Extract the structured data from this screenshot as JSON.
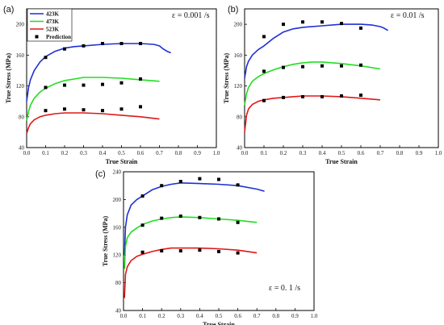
{
  "chart_data": [
    {
      "type": "line",
      "panel_label": "(a)",
      "annotation": "ε = 0.001 /s",
      "xlabel": "True Strain",
      "ylabel": "True Stress (MPa)",
      "xlim": [
        0,
        1.0
      ],
      "ylim": [
        40,
        220
      ],
      "xticks": [
        "0.0",
        "0.1",
        "0.2",
        "0.3",
        "0.4",
        "0.5",
        "0.6",
        "0.7",
        "0.8",
        "0.9",
        "1.0"
      ],
      "yticks": [
        "40",
        "80",
        "120",
        "160",
        "200"
      ],
      "legend": {
        "position": "top-left",
        "entries": [
          {
            "label": "423K",
            "color": "#1f2fd6",
            "kind": "line"
          },
          {
            "label": "473K",
            "color": "#22dd22",
            "kind": "line"
          },
          {
            "label": "523K",
            "color": "#e01818",
            "kind": "line"
          },
          {
            "label": "Prediction",
            "color": "#000000",
            "kind": "square"
          }
        ]
      },
      "series": [
        {
          "name": "423K",
          "color": "#1f2fd6",
          "x": [
            0.0,
            0.01,
            0.02,
            0.04,
            0.07,
            0.1,
            0.15,
            0.2,
            0.25,
            0.3,
            0.4,
            0.5,
            0.6,
            0.67,
            0.7,
            0.72,
            0.74,
            0.76
          ],
          "y": [
            100,
            118,
            128,
            140,
            151,
            158,
            165,
            169,
            171,
            172,
            174,
            175,
            175,
            174,
            172,
            168,
            165,
            163
          ]
        },
        {
          "name": "473K",
          "color": "#22dd22",
          "x": [
            0.0,
            0.01,
            0.02,
            0.04,
            0.07,
            0.1,
            0.15,
            0.2,
            0.25,
            0.3,
            0.35,
            0.4,
            0.5,
            0.6,
            0.7
          ],
          "y": [
            75,
            87,
            95,
            104,
            112,
            117,
            123,
            127,
            129,
            131,
            131,
            131,
            130,
            128,
            126
          ]
        },
        {
          "name": "523K",
          "color": "#e01818",
          "x": [
            0.0,
            0.01,
            0.02,
            0.04,
            0.07,
            0.1,
            0.15,
            0.2,
            0.25,
            0.3,
            0.4,
            0.5,
            0.6,
            0.7
          ],
          "y": [
            58,
            66,
            71,
            76,
            80,
            82,
            84,
            85,
            85,
            85,
            84,
            82,
            80,
            77
          ]
        },
        {
          "name": "Prediction 423K",
          "kind": "points",
          "x": [
            0.1,
            0.2,
            0.3,
            0.4,
            0.5,
            0.6
          ],
          "y": [
            157,
            168,
            172,
            175,
            175,
            175
          ]
        },
        {
          "name": "Prediction 473K",
          "kind": "points",
          "x": [
            0.1,
            0.2,
            0.3,
            0.4,
            0.5,
            0.6
          ],
          "y": [
            118,
            121,
            121,
            122,
            124,
            129
          ]
        },
        {
          "name": "Prediction 523K",
          "kind": "points",
          "x": [
            0.1,
            0.2,
            0.3,
            0.4,
            0.5,
            0.6
          ],
          "y": [
            88,
            90,
            89,
            88,
            90,
            93
          ]
        }
      ]
    },
    {
      "type": "line",
      "panel_label": "(b)",
      "annotation": "ε = 0.01 /s",
      "xlabel": "True Strain",
      "ylabel": "True Stress (MPa)",
      "xlim": [
        0,
        1.0
      ],
      "ylim": [
        40,
        220
      ],
      "xticks": [
        "0.0",
        "0.1",
        "0.2",
        "0.3",
        "0.4",
        "0.5",
        "0.6",
        "0.7",
        "0.8",
        "0.9",
        "1.0"
      ],
      "yticks": [
        "40",
        "80",
        "120",
        "160",
        "200"
      ],
      "series": [
        {
          "name": "423K",
          "color": "#1f2fd6",
          "x": [
            0.0,
            0.01,
            0.02,
            0.04,
            0.07,
            0.1,
            0.15,
            0.2,
            0.25,
            0.3,
            0.4,
            0.5,
            0.6,
            0.66,
            0.7,
            0.72,
            0.74
          ],
          "y": [
            130,
            145,
            152,
            160,
            167,
            172,
            182,
            190,
            194,
            196,
            198,
            200,
            200,
            199,
            197,
            195,
            192
          ]
        },
        {
          "name": "473K",
          "color": "#22dd22",
          "x": [
            0.0,
            0.01,
            0.02,
            0.04,
            0.07,
            0.1,
            0.15,
            0.2,
            0.25,
            0.3,
            0.35,
            0.4,
            0.5,
            0.6,
            0.7
          ],
          "y": [
            95,
            110,
            118,
            126,
            132,
            136,
            141,
            145,
            148,
            150,
            151,
            151,
            149,
            146,
            142
          ]
        },
        {
          "name": "523K",
          "color": "#e01818",
          "x": [
            0.0,
            0.01,
            0.02,
            0.04,
            0.07,
            0.1,
            0.15,
            0.2,
            0.25,
            0.3,
            0.4,
            0.5,
            0.6,
            0.7
          ],
          "y": [
            60,
            82,
            90,
            96,
            100,
            102,
            104,
            105,
            106,
            107,
            107,
            106,
            104,
            102
          ]
        },
        {
          "name": "Prediction 423K",
          "kind": "points",
          "x": [
            0.1,
            0.2,
            0.3,
            0.4,
            0.5,
            0.6
          ],
          "y": [
            184,
            200,
            203,
            203,
            201,
            195
          ]
        },
        {
          "name": "Prediction 473K",
          "kind": "points",
          "x": [
            0.1,
            0.2,
            0.3,
            0.4,
            0.5,
            0.6
          ],
          "y": [
            139,
            144,
            145,
            146,
            146,
            147
          ]
        },
        {
          "name": "Prediction 523K",
          "kind": "points",
          "x": [
            0.1,
            0.2,
            0.3,
            0.4,
            0.5,
            0.6
          ],
          "y": [
            101,
            105,
            106,
            106,
            107,
            108
          ]
        }
      ]
    },
    {
      "type": "line",
      "panel_label": "(c)",
      "annotation": "ε = 0. 1 /s",
      "xlabel": "True Strain",
      "ylabel": "True Stress (MPa)",
      "xlim": [
        0,
        1.0
      ],
      "ylim": [
        40,
        240
      ],
      "xticks": [
        "0.0",
        "0.1",
        "0.2",
        "0.3",
        "0.4",
        "0.5",
        "0.6",
        "0.7",
        "0.8",
        "0.9",
        "1.0"
      ],
      "yticks": [
        "40",
        "80",
        "120",
        "160",
        "200",
        "240"
      ],
      "series": [
        {
          "name": "423K",
          "color": "#1f2fd6",
          "x": [
            0.005,
            0.01,
            0.02,
            0.04,
            0.07,
            0.1,
            0.15,
            0.2,
            0.25,
            0.3,
            0.4,
            0.5,
            0.6,
            0.7,
            0.74
          ],
          "y": [
            120,
            160,
            178,
            192,
            200,
            205,
            214,
            219,
            222,
            224,
            223,
            222,
            220,
            215,
            212
          ]
        },
        {
          "name": "473K",
          "color": "#22dd22",
          "x": [
            0.005,
            0.01,
            0.02,
            0.04,
            0.07,
            0.1,
            0.15,
            0.2,
            0.25,
            0.3,
            0.4,
            0.5,
            0.6,
            0.7
          ],
          "y": [
            100,
            132,
            145,
            153,
            159,
            164,
            169,
            172,
            174,
            175,
            174,
            172,
            170,
            167
          ]
        },
        {
          "name": "523K",
          "color": "#e01818",
          "x": [
            0.005,
            0.01,
            0.02,
            0.04,
            0.07,
            0.1,
            0.15,
            0.2,
            0.25,
            0.3,
            0.4,
            0.5,
            0.6,
            0.7
          ],
          "y": [
            58,
            92,
            103,
            112,
            118,
            121,
            125,
            128,
            130,
            130,
            130,
            129,
            127,
            123
          ]
        },
        {
          "name": "Prediction 423K",
          "kind": "points",
          "x": [
            0.1,
            0.2,
            0.3,
            0.4,
            0.5,
            0.6
          ],
          "y": [
            205,
            220,
            226,
            230,
            229,
            221
          ]
        },
        {
          "name": "Prediction 473K",
          "kind": "points",
          "x": [
            0.1,
            0.2,
            0.3,
            0.4,
            0.5,
            0.6
          ],
          "y": [
            163,
            173,
            176,
            174,
            172,
            167
          ]
        },
        {
          "name": "Prediction 523K",
          "kind": "points",
          "x": [
            0.1,
            0.2,
            0.3,
            0.4,
            0.5,
            0.6
          ],
          "y": [
            124,
            126,
            126,
            127,
            125,
            123
          ]
        }
      ]
    }
  ]
}
